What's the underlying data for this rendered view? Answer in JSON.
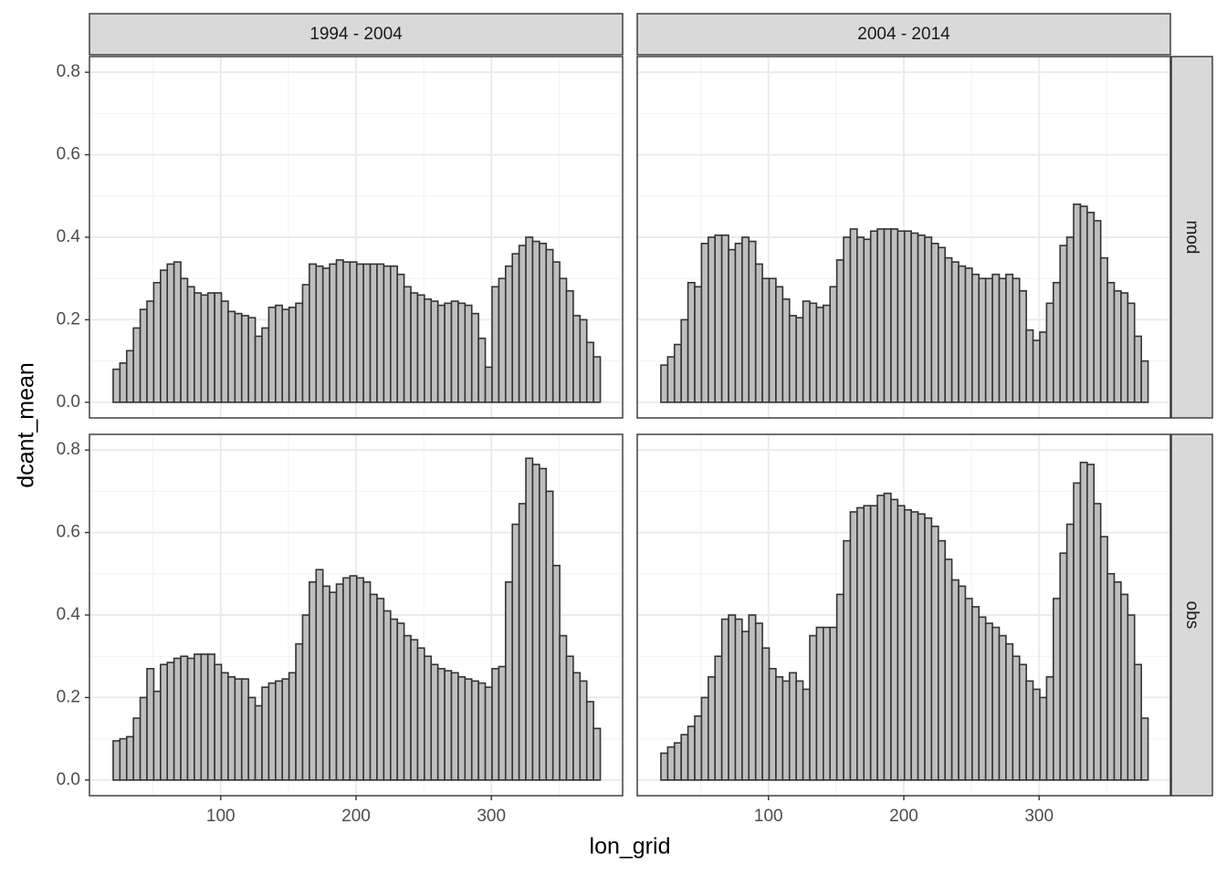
{
  "chart_data": {
    "type": "bar",
    "x_label": "lon_grid",
    "y_label": "dcant_mean",
    "column_labels": [
      "1994 - 2004",
      "2004 - 2014"
    ],
    "row_labels": [
      "mod",
      "obs"
    ],
    "fill": "#bebebe",
    "stroke": "#333333",
    "bar_width": 5,
    "x": [
      23,
      28,
      33,
      38,
      43,
      48,
      53,
      58,
      63,
      68,
      73,
      78,
      83,
      88,
      93,
      98,
      103,
      108,
      113,
      118,
      123,
      128,
      133,
      138,
      143,
      148,
      153,
      158,
      163,
      168,
      173,
      178,
      183,
      188,
      193,
      198,
      203,
      208,
      213,
      218,
      223,
      228,
      233,
      238,
      243,
      248,
      253,
      258,
      263,
      268,
      273,
      278,
      283,
      288,
      293,
      298,
      303,
      308,
      313,
      318,
      323,
      328,
      333,
      338,
      343,
      348,
      353,
      358,
      363,
      368,
      373,
      378
    ],
    "values": [
      [
        [
          0.08,
          0.095,
          0.125,
          0.18,
          0.225,
          0.245,
          0.29,
          0.32,
          0.335,
          0.34,
          0.3,
          0.28,
          0.265,
          0.26,
          0.265,
          0.265,
          0.245,
          0.22,
          0.215,
          0.21,
          0.205,
          0.16,
          0.18,
          0.23,
          0.235,
          0.225,
          0.23,
          0.24,
          0.285,
          0.335,
          0.33,
          0.325,
          0.335,
          0.345,
          0.34,
          0.34,
          0.335,
          0.335,
          0.335,
          0.335,
          0.33,
          0.33,
          0.31,
          0.28,
          0.265,
          0.26,
          0.25,
          0.245,
          0.235,
          0.24,
          0.245,
          0.24,
          0.235,
          0.215,
          0.155,
          0.085,
          0.28,
          0.3,
          0.33,
          0.36,
          0.38,
          0.4,
          0.39,
          0.385,
          0.37,
          0.34,
          0.3,
          0.27,
          0.21,
          0.2,
          0.145,
          0.11
        ],
        [
          0.09,
          0.11,
          0.14,
          0.2,
          0.29,
          0.28,
          0.385,
          0.4,
          0.405,
          0.405,
          0.37,
          0.385,
          0.4,
          0.39,
          0.335,
          0.3,
          0.3,
          0.28,
          0.25,
          0.21,
          0.205,
          0.245,
          0.24,
          0.23,
          0.235,
          0.28,
          0.345,
          0.4,
          0.42,
          0.4,
          0.395,
          0.415,
          0.42,
          0.42,
          0.42,
          0.415,
          0.415,
          0.41,
          0.405,
          0.4,
          0.385,
          0.375,
          0.35,
          0.34,
          0.33,
          0.325,
          0.31,
          0.3,
          0.3,
          0.31,
          0.3,
          0.31,
          0.3,
          0.27,
          0.175,
          0.15,
          0.17,
          0.24,
          0.29,
          0.38,
          0.4,
          0.48,
          0.475,
          0.46,
          0.44,
          0.35,
          0.29,
          0.27,
          0.265,
          0.24,
          0.16,
          0.1
        ]
      ],
      [
        [
          0.095,
          0.1,
          0.105,
          0.15,
          0.2,
          0.27,
          0.215,
          0.28,
          0.285,
          0.295,
          0.3,
          0.295,
          0.305,
          0.305,
          0.305,
          0.28,
          0.26,
          0.25,
          0.245,
          0.245,
          0.2,
          0.18,
          0.225,
          0.235,
          0.24,
          0.245,
          0.26,
          0.33,
          0.4,
          0.48,
          0.51,
          0.47,
          0.455,
          0.475,
          0.49,
          0.495,
          0.49,
          0.48,
          0.45,
          0.44,
          0.41,
          0.39,
          0.38,
          0.35,
          0.34,
          0.32,
          0.3,
          0.28,
          0.27,
          0.265,
          0.26,
          0.25,
          0.245,
          0.24,
          0.235,
          0.225,
          0.27,
          0.275,
          0.48,
          0.62,
          0.67,
          0.78,
          0.765,
          0.755,
          0.7,
          0.52,
          0.35,
          0.3,
          0.26,
          0.24,
          0.19,
          0.125
        ],
        [
          0.065,
          0.08,
          0.09,
          0.11,
          0.13,
          0.155,
          0.2,
          0.25,
          0.3,
          0.39,
          0.4,
          0.39,
          0.36,
          0.4,
          0.38,
          0.32,
          0.27,
          0.25,
          0.24,
          0.26,
          0.24,
          0.22,
          0.35,
          0.37,
          0.37,
          0.37,
          0.45,
          0.58,
          0.65,
          0.66,
          0.665,
          0.665,
          0.69,
          0.695,
          0.68,
          0.665,
          0.655,
          0.65,
          0.645,
          0.635,
          0.615,
          0.58,
          0.535,
          0.485,
          0.47,
          0.44,
          0.42,
          0.395,
          0.38,
          0.37,
          0.35,
          0.33,
          0.3,
          0.28,
          0.24,
          0.22,
          0.2,
          0.25,
          0.44,
          0.55,
          0.62,
          0.72,
          0.77,
          0.765,
          0.67,
          0.59,
          0.5,
          0.48,
          0.45,
          0.4,
          0.28,
          0.15
        ]
      ]
    ],
    "xlim": [
      3,
      397
    ],
    "ylim": [
      -0.038,
      0.838
    ],
    "xticks": [
      100,
      200,
      300
    ],
    "yticks": [
      {
        "value": 0,
        "label": "0.0"
      },
      0.2,
      0.4,
      0.6,
      0.8
    ],
    "x_minor": [
      50,
      150,
      250,
      350
    ],
    "y_minor": [
      0.1,
      0.3,
      0.5,
      0.7
    ],
    "grid": true
  }
}
